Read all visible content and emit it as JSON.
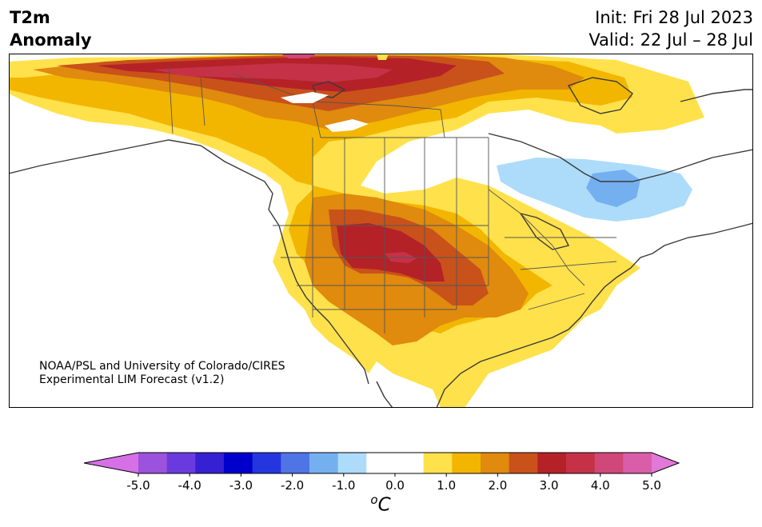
{
  "title": {
    "line1": "T2m",
    "line2": "Anomaly"
  },
  "dates": {
    "init": "Init: Fri 28 Jul 2023",
    "valid": "Valid: 22 Jul – 28 Jul"
  },
  "credit": {
    "line1": "NOAA/PSL and University of Colorado/CIRES",
    "line2": "Experimental LIM Forecast (v1.2)"
  },
  "colorbar": {
    "unit_base": "C",
    "unit_sup": "o",
    "ticks": [
      "-5.0",
      "-4.0",
      "-3.0",
      "-2.0",
      "-1.0",
      "0.0",
      "1.0",
      "2.0",
      "3.0",
      "4.0",
      "5.0"
    ],
    "colors": [
      "#d670e6",
      "#9b52dc",
      "#6b3adf",
      "#3520d2",
      "#0000cd",
      "#2636df",
      "#4e74e6",
      "#74b0f0",
      "#acdcfa",
      "#ffffff",
      "#ffffff",
      "#ffe14b",
      "#f2b600",
      "#e08a0e",
      "#c8521a",
      "#b42228",
      "#c53248",
      "#d04878",
      "#d95ea8",
      "#e278d8"
    ]
  }
}
